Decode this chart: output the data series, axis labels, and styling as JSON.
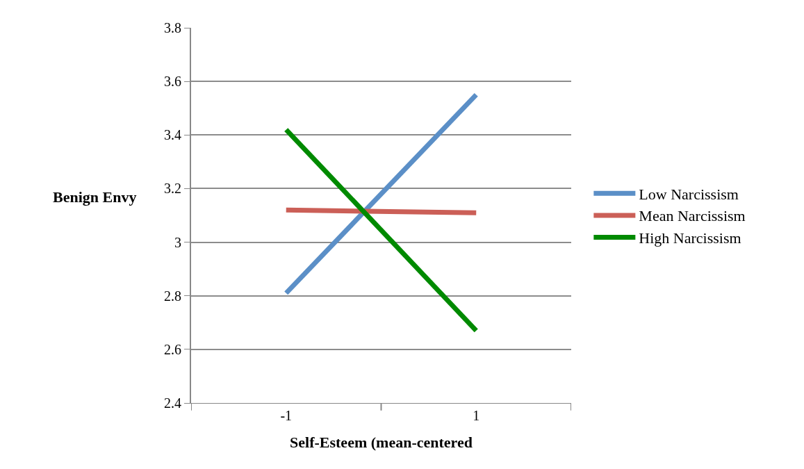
{
  "chart_data": {
    "type": "line",
    "xlabel": "Self-Esteem (mean-centered",
    "ylabel": "Benign Envy",
    "categories": [
      "-1",
      "1"
    ],
    "series": [
      {
        "name": "Low Narcissism",
        "color": "#5b8fc7",
        "values": [
          2.81,
          3.55
        ]
      },
      {
        "name": "Mean Narcissism",
        "color": "#cb5f57",
        "values": [
          3.12,
          3.11
        ]
      },
      {
        "name": "High Narcissism",
        "color": "#008a00",
        "values": [
          3.42,
          2.67
        ]
      }
    ],
    "ylim": [
      2.4,
      3.8
    ],
    "yticks": [
      {
        "value": 2.4,
        "label": "2.4"
      },
      {
        "value": 2.6,
        "label": "2.6"
      },
      {
        "value": 2.8,
        "label": "2.8"
      },
      3,
      {
        "value": 3.2,
        "label": "3.2"
      },
      {
        "value": 3.4,
        "label": "3.4"
      },
      {
        "value": 3.6,
        "label": "3.6"
      },
      {
        "value": 3.8,
        "label": "3.8"
      }
    ],
    "grid": "y",
    "legend": "right",
    "marker": "none",
    "line_style": "solid"
  }
}
